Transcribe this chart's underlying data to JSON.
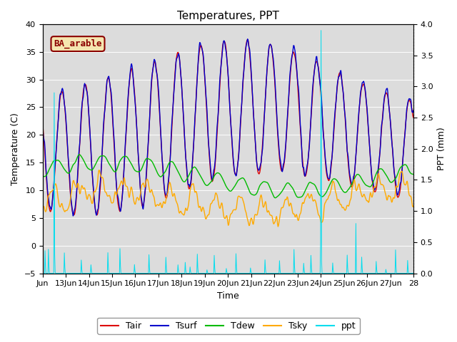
{
  "title": "Temperatures, PPT",
  "xlabel": "Time",
  "ylabel_left": "Temperature (C)",
  "ylabel_right": "PPT (mm)",
  "legend_label": "BA_arable",
  "ylim_left": [
    -5,
    40
  ],
  "ylim_right": [
    0.0,
    4.0
  ],
  "yticks_left": [
    -5,
    0,
    5,
    10,
    15,
    20,
    25,
    30,
    35,
    40
  ],
  "yticks_right": [
    0.0,
    0.5,
    1.0,
    1.5,
    2.0,
    2.5,
    3.0,
    3.5,
    4.0
  ],
  "colors": {
    "Tair": "#dd0000",
    "Tsurf": "#0000cc",
    "Tdew": "#00bb00",
    "Tsky": "#ffaa00",
    "ppt": "#00ddee"
  },
  "bg_color": "#dcdcdc",
  "n_points": 768,
  "days": 16
}
